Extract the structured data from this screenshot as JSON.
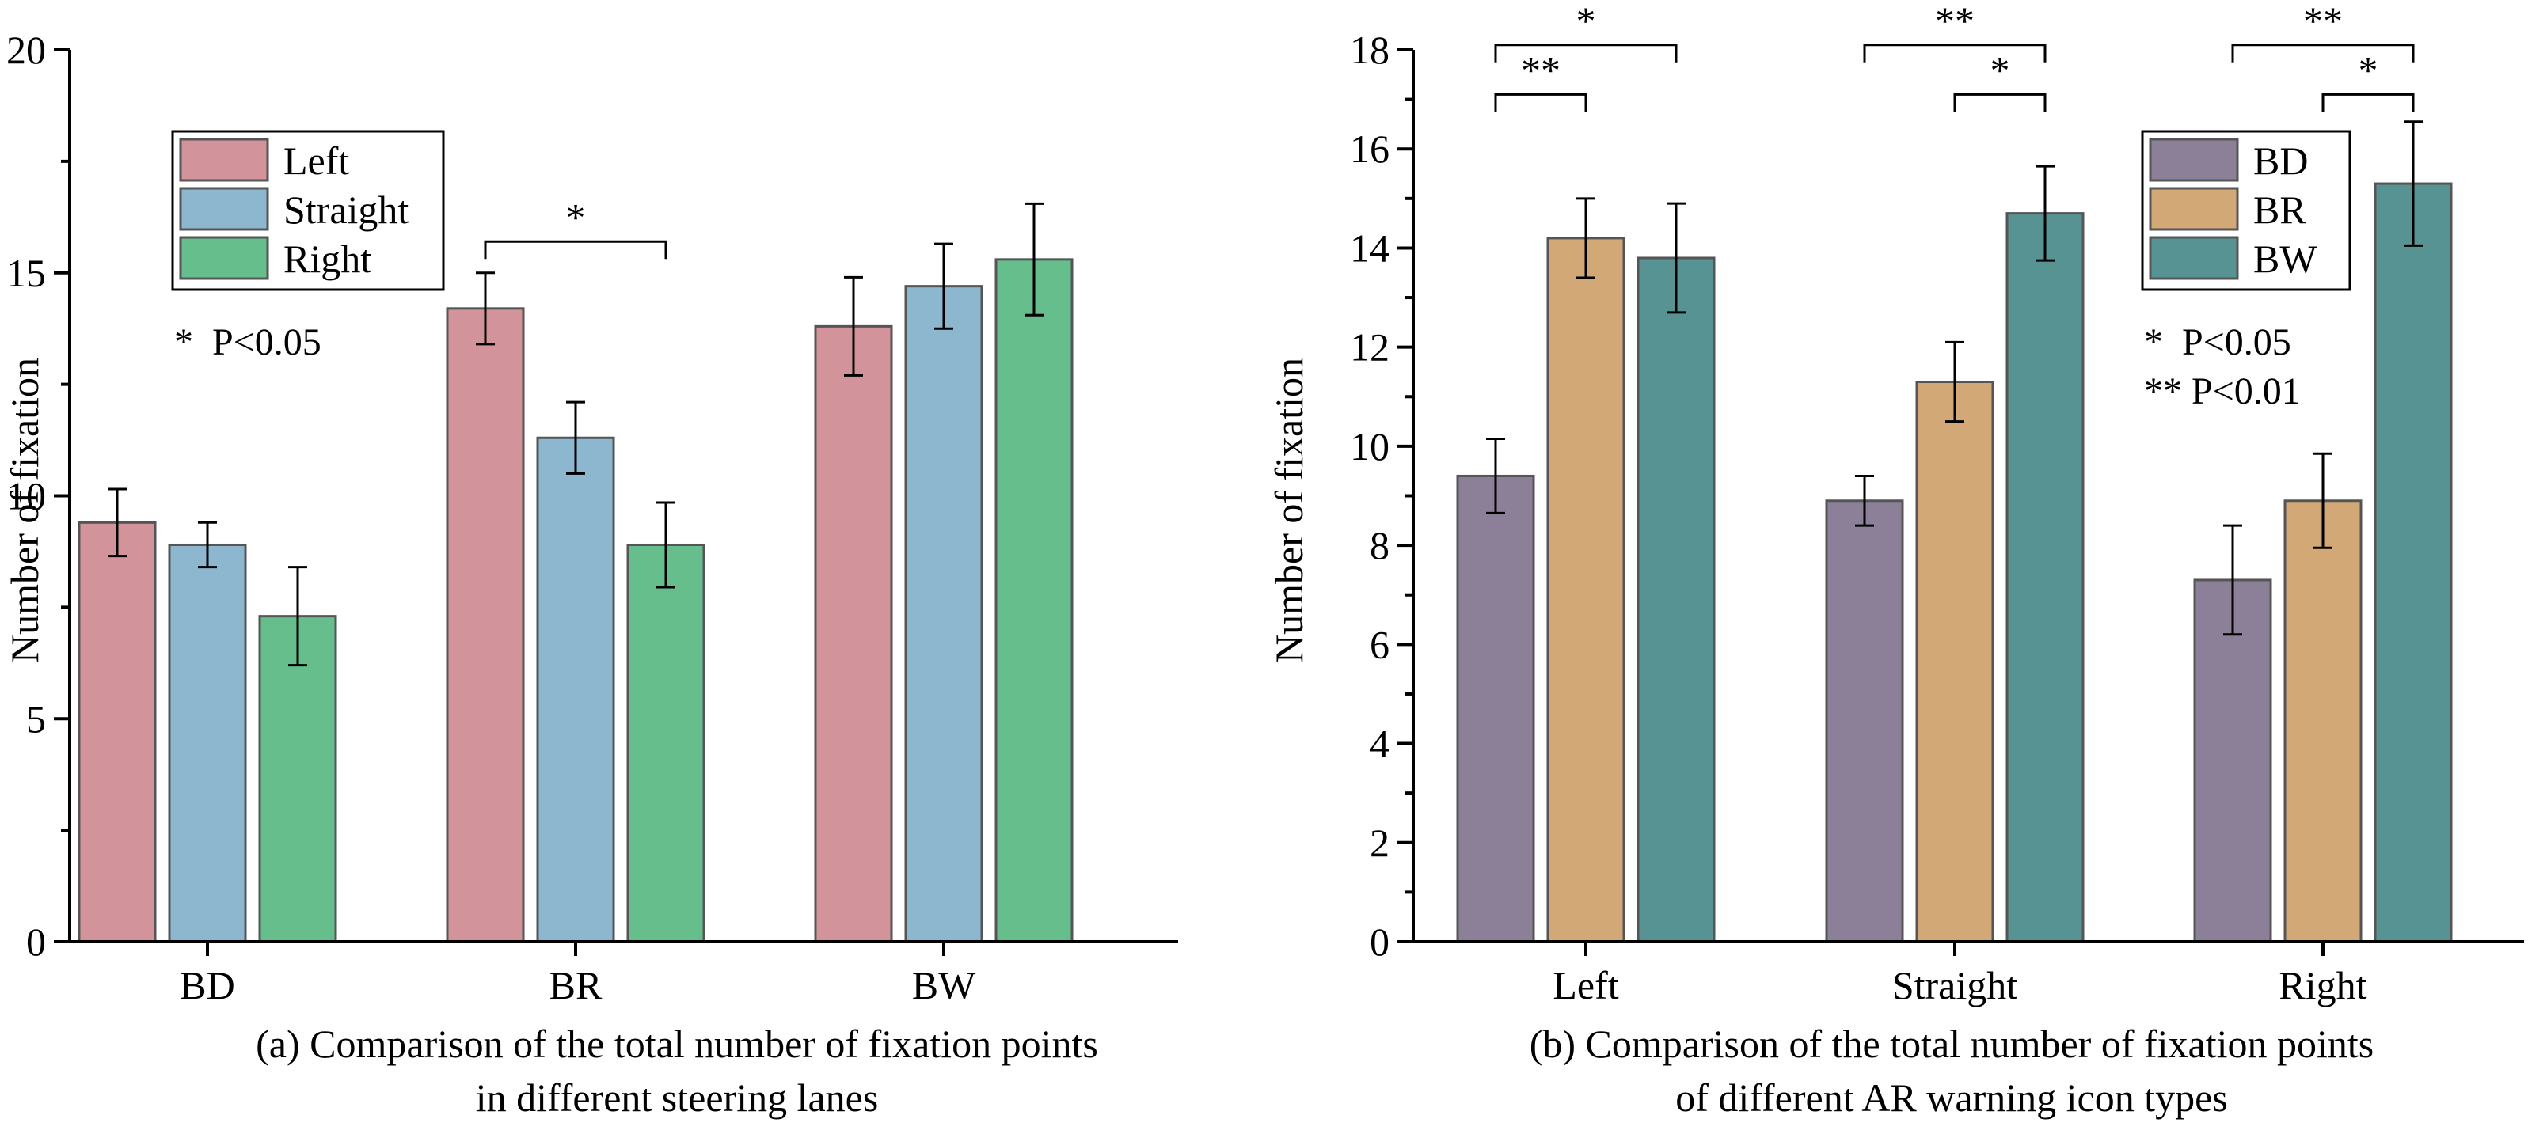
{
  "chart_data": [
    {
      "type": "bar",
      "title": "(a) Comparison of the total number of fixation points in different steering lanes",
      "caption_lines": [
        "(a) Comparison of the total number of fixation points",
        "in different steering lanes"
      ],
      "xlabel": "",
      "ylabel": "Number of fixation",
      "ylim": [
        0,
        20
      ],
      "yticks": [
        0,
        5,
        10,
        15,
        20
      ],
      "categories": [
        "BD",
        "BR",
        "BW"
      ],
      "series": [
        {
          "name": "Left",
          "color": "#d2939a",
          "values": [
            9.4,
            14.2,
            13.8
          ],
          "errors": [
            0.75,
            0.8,
            1.1
          ]
        },
        {
          "name": "Straight",
          "color": "#8db6cf",
          "values": [
            8.9,
            11.3,
            14.7
          ],
          "errors": [
            0.5,
            0.8,
            0.95
          ]
        },
        {
          "name": "Right",
          "color": "#65be8c",
          "values": [
            7.3,
            8.9,
            15.3
          ],
          "errors": [
            1.1,
            0.95,
            1.25
          ]
        }
      ],
      "legend": {
        "position": "top-left",
        "entries": [
          "Left",
          "Straight",
          "Right"
        ]
      },
      "notes": [
        "*  P<0.05"
      ],
      "significance": [
        {
          "category": "BR",
          "from": 0,
          "to": 2,
          "label": "*",
          "level": 15.7
        }
      ]
    },
    {
      "type": "bar",
      "title": "(b) Comparison of the total number of fixation points of different AR warning icon types",
      "caption_lines": [
        "(b) Comparison of the total number of fixation points",
        "of different AR warning icon types"
      ],
      "xlabel": "",
      "ylabel": "Number of fixation",
      "ylim": [
        0,
        18
      ],
      "yticks": [
        0,
        2,
        4,
        6,
        8,
        10,
        12,
        14,
        16,
        18
      ],
      "categories": [
        "Left",
        "Straight",
        "Right"
      ],
      "series": [
        {
          "name": "BD",
          "color": "#8b8098",
          "values": [
            9.4,
            8.9,
            7.3
          ],
          "errors": [
            0.75,
            0.5,
            1.1
          ]
        },
        {
          "name": "BR",
          "color": "#d2a976",
          "values": [
            14.2,
            11.3,
            8.9
          ],
          "errors": [
            0.8,
            0.8,
            0.95
          ]
        },
        {
          "name": "BW",
          "color": "#579393",
          "values": [
            13.8,
            14.7,
            15.3
          ],
          "errors": [
            1.1,
            0.95,
            1.25
          ]
        }
      ],
      "legend": {
        "position": "top-right",
        "entries": [
          "BD",
          "BR",
          "BW"
        ]
      },
      "notes": [
        "*  P<0.05",
        "** P<0.01"
      ],
      "significance": [
        {
          "category": "Left",
          "from": 0,
          "to": 2,
          "label": "*",
          "level": 18.1
        },
        {
          "category": "Left",
          "from": 0,
          "to": 1,
          "label": "**",
          "level": 17.1
        },
        {
          "category": "Straight",
          "from": 0,
          "to": 2,
          "label": "**",
          "level": 18.1
        },
        {
          "category": "Straight",
          "from": 1,
          "to": 2,
          "label": "*",
          "level": 17.1
        },
        {
          "category": "Right",
          "from": 0,
          "to": 2,
          "label": "**",
          "level": 18.1
        },
        {
          "category": "Right",
          "from": 1,
          "to": 2,
          "label": "*",
          "level": 17.1
        }
      ]
    }
  ]
}
